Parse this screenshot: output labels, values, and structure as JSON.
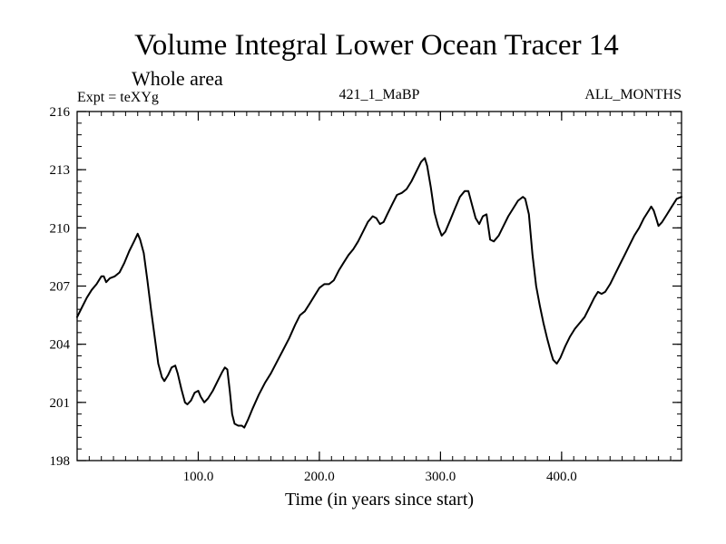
{
  "chart_data": {
    "type": "line",
    "title": "Volume Integral Lower Ocean Tracer 14",
    "subtitle": "Whole area",
    "annotations": {
      "left": "Expt = teXYg",
      "center": "421_1_MaBP",
      "right": "ALL_MONTHS"
    },
    "xlabel": "Time (in years since start)",
    "ylabel": "",
    "xlim": [
      0,
      499
    ],
    "ylim": [
      198,
      216
    ],
    "x_ticks": [
      100,
      200,
      300,
      400
    ],
    "x_tick_labels": [
      "100.0",
      "200.0",
      "300.0",
      "400.0"
    ],
    "y_ticks": [
      198,
      201,
      204,
      207,
      210,
      213,
      216
    ],
    "y_tick_labels": [
      "198",
      "201",
      "204",
      "207",
      "210",
      "213",
      "216"
    ],
    "x_minor_step": 10,
    "y_minor_step": 0.6,
    "grid": false,
    "series": [
      {
        "color": "#000000",
        "points": [
          [
            0,
            205.4
          ],
          [
            4,
            205.9
          ],
          [
            8,
            206.4
          ],
          [
            12,
            206.8
          ],
          [
            16,
            207.1
          ],
          [
            20,
            207.5
          ],
          [
            22,
            207.5
          ],
          [
            24,
            207.2
          ],
          [
            27,
            207.4
          ],
          [
            31,
            207.5
          ],
          [
            35,
            207.7
          ],
          [
            39,
            208.2
          ],
          [
            43,
            208.8
          ],
          [
            47,
            209.3
          ],
          [
            50,
            209.7
          ],
          [
            52,
            209.4
          ],
          [
            55,
            208.7
          ],
          [
            58,
            207.3
          ],
          [
            61,
            205.8
          ],
          [
            64,
            204.4
          ],
          [
            67,
            203.0
          ],
          [
            70,
            202.3
          ],
          [
            72,
            202.1
          ],
          [
            75,
            202.4
          ],
          [
            78,
            202.8
          ],
          [
            81,
            202.9
          ],
          [
            83,
            202.5
          ],
          [
            86,
            201.7
          ],
          [
            89,
            201.0
          ],
          [
            91,
            200.9
          ],
          [
            94,
            201.1
          ],
          [
            97,
            201.5
          ],
          [
            100,
            201.6
          ],
          [
            102,
            201.3
          ],
          [
            105,
            201.0
          ],
          [
            108,
            201.2
          ],
          [
            112,
            201.6
          ],
          [
            116,
            202.1
          ],
          [
            120,
            202.6
          ],
          [
            122,
            202.8
          ],
          [
            124,
            202.7
          ],
          [
            126,
            201.6
          ],
          [
            128,
            200.4
          ],
          [
            130,
            199.9
          ],
          [
            133,
            199.8
          ],
          [
            136,
            199.8
          ],
          [
            138,
            199.7
          ],
          [
            141,
            200.1
          ],
          [
            145,
            200.7
          ],
          [
            150,
            201.4
          ],
          [
            155,
            202.0
          ],
          [
            160,
            202.5
          ],
          [
            165,
            203.1
          ],
          [
            170,
            203.7
          ],
          [
            175,
            204.3
          ],
          [
            180,
            205.0
          ],
          [
            184,
            205.5
          ],
          [
            188,
            205.7
          ],
          [
            192,
            206.1
          ],
          [
            196,
            206.5
          ],
          [
            200,
            206.9
          ],
          [
            204,
            207.1
          ],
          [
            208,
            207.1
          ],
          [
            212,
            207.3
          ],
          [
            216,
            207.8
          ],
          [
            220,
            208.2
          ],
          [
            224,
            208.6
          ],
          [
            228,
            208.9
          ],
          [
            232,
            209.3
          ],
          [
            236,
            209.8
          ],
          [
            240,
            210.3
          ],
          [
            244,
            210.6
          ],
          [
            247,
            210.5
          ],
          [
            250,
            210.2
          ],
          [
            253,
            210.3
          ],
          [
            256,
            210.7
          ],
          [
            260,
            211.2
          ],
          [
            264,
            211.7
          ],
          [
            268,
            211.8
          ],
          [
            272,
            212.0
          ],
          [
            276,
            212.4
          ],
          [
            280,
            212.9
          ],
          [
            284,
            213.4
          ],
          [
            287,
            213.6
          ],
          [
            289,
            213.2
          ],
          [
            292,
            212.1
          ],
          [
            295,
            210.8
          ],
          [
            298,
            210.1
          ],
          [
            301,
            209.6
          ],
          [
            304,
            209.8
          ],
          [
            308,
            210.4
          ],
          [
            312,
            211.0
          ],
          [
            316,
            211.6
          ],
          [
            320,
            211.9
          ],
          [
            323,
            211.9
          ],
          [
            326,
            211.2
          ],
          [
            329,
            210.5
          ],
          [
            332,
            210.2
          ],
          [
            335,
            210.6
          ],
          [
            338,
            210.7
          ],
          [
            341,
            209.4
          ],
          [
            344,
            209.3
          ],
          [
            348,
            209.6
          ],
          [
            352,
            210.1
          ],
          [
            356,
            210.6
          ],
          [
            360,
            211.0
          ],
          [
            364,
            211.4
          ],
          [
            368,
            211.6
          ],
          [
            370,
            211.5
          ],
          [
            373,
            210.7
          ],
          [
            376,
            208.6
          ],
          [
            379,
            207.0
          ],
          [
            382,
            206.0
          ],
          [
            385,
            205.1
          ],
          [
            388,
            204.3
          ],
          [
            391,
            203.6
          ],
          [
            393,
            203.2
          ],
          [
            396,
            203.0
          ],
          [
            399,
            203.3
          ],
          [
            403,
            203.9
          ],
          [
            407,
            204.4
          ],
          [
            411,
            204.8
          ],
          [
            415,
            205.1
          ],
          [
            419,
            205.4
          ],
          [
            423,
            205.9
          ],
          [
            427,
            206.4
          ],
          [
            430,
            206.7
          ],
          [
            433,
            206.6
          ],
          [
            436,
            206.7
          ],
          [
            440,
            207.1
          ],
          [
            444,
            207.6
          ],
          [
            448,
            208.1
          ],
          [
            452,
            208.6
          ],
          [
            456,
            209.1
          ],
          [
            460,
            209.6
          ],
          [
            464,
            210.0
          ],
          [
            468,
            210.5
          ],
          [
            472,
            210.9
          ],
          [
            474,
            211.1
          ],
          [
            476,
            210.9
          ],
          [
            478,
            210.5
          ],
          [
            480,
            210.1
          ],
          [
            483,
            210.3
          ],
          [
            487,
            210.7
          ],
          [
            491,
            211.1
          ],
          [
            495,
            211.5
          ],
          [
            499,
            211.6
          ]
        ]
      }
    ]
  }
}
